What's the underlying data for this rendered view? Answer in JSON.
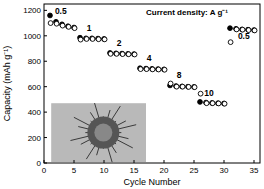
{
  "chart_data": {
    "type": "scatter",
    "x_label": "Cycle Number",
    "y_label": "Capacity (mAh g⁻¹)",
    "x": [
      1,
      2,
      3,
      4,
      5,
      6,
      7,
      8,
      9,
      10,
      11,
      12,
      13,
      14,
      15,
      16,
      17,
      18,
      19,
      20,
      21,
      22,
      23,
      24,
      25,
      26,
      27,
      28,
      29,
      30,
      31,
      32,
      33,
      34,
      35
    ],
    "series": [
      {
        "marker": "filled-circle",
        "color": "#000000",
        "values": [
          1160,
          1110,
          1090,
          1075,
          1065,
          985,
          980,
          980,
          978,
          975,
          865,
          862,
          860,
          858,
          856,
          745,
          742,
          740,
          738,
          736,
          610,
          605,
          602,
          600,
          598,
          480,
          475,
          472,
          470,
          468,
          1060,
          1055,
          1050,
          1048,
          1045
        ]
      },
      {
        "marker": "open-circle",
        "color": "#000000",
        "values": [
          1100,
          1095,
          1080,
          1070,
          1060,
          970,
          975,
          975,
          973,
          972,
          858,
          858,
          856,
          855,
          853,
          738,
          738,
          736,
          735,
          733,
          625,
          600,
          600,
          598,
          596,
          545,
          470,
          470,
          468,
          466,
          950,
          1050,
          1048,
          1045,
          1042
        ]
      }
    ],
    "xlim": [
      0,
      36
    ],
    "xticks": [
      0,
      5,
      10,
      15,
      20,
      25,
      30,
      35
    ],
    "ylim": [
      0,
      1250
    ],
    "yticks": [
      0,
      200,
      400,
      600,
      800,
      1000,
      1200
    ],
    "annotations": [
      {
        "text": "Current density: A g⁻¹",
        "x": 17,
        "y": 1160
      },
      {
        "text": "0.5",
        "x": 2.8,
        "y": 1170
      },
      {
        "text": "1",
        "x": 7.5,
        "y": 1040
      },
      {
        "text": "2",
        "x": 12.5,
        "y": 920
      },
      {
        "text": "4",
        "x": 17.5,
        "y": 800
      },
      {
        "text": "8",
        "x": 22.5,
        "y": 665
      },
      {
        "text": "10",
        "x": 27.5,
        "y": 525
      },
      {
        "text": "0.5",
        "x": 33.3,
        "y": 975
      }
    ]
  }
}
